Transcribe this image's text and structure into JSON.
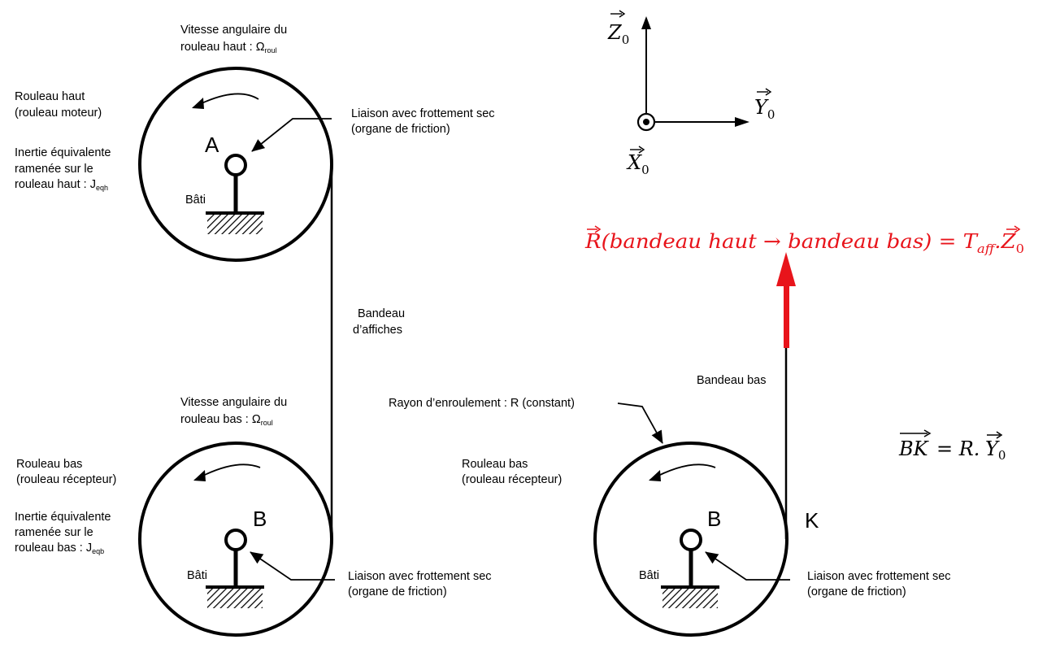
{
  "colors": {
    "stroke": "#000000",
    "accent": "#e8141b"
  },
  "top_roller": {
    "speed_label_1": "Vitesse angulaire du",
    "speed_label_2": "rouleau haut : Ω",
    "speed_sub": "roul",
    "name_1": "Rouleau haut",
    "name_2": "(rouleau moteur)",
    "inertia_1": "Inertie équivalente",
    "inertia_2": "ramenée sur le",
    "inertia_3": "rouleau haut : J",
    "inertia_sub": "eqh",
    "center_label": "A",
    "frame_label": "Bâti",
    "friction_1": "Liaison avec frottement sec",
    "friction_2": "(organe de friction)"
  },
  "band": {
    "label_1": "Bandeau",
    "label_2": "d’affiches"
  },
  "bottom_roller": {
    "speed_label_1": "Vitesse angulaire du",
    "speed_label_2": "rouleau bas : Ω",
    "speed_sub": "roul",
    "name_1": "Rouleau bas",
    "name_2": "(rouleau récepteur)",
    "inertia_1": "Inertie équivalente",
    "inertia_2": "ramenée sur le",
    "inertia_3": "rouleau bas : J",
    "inertia_sub": "eqb",
    "center_label": "B",
    "frame_label": "Bâti",
    "friction_1": "Liaison avec frottement sec",
    "friction_2": "(organe de friction)"
  },
  "detail": {
    "radius_label": "Rayon d’enroulement : R (constant)",
    "name_1": "Rouleau bas",
    "name_2": "(rouleau récepteur)",
    "center_label": "B",
    "point_label": "K",
    "frame_label": "Bâti",
    "band_label": "Bandeau bas",
    "friction_1": "Liaison avec frottement sec",
    "friction_2": "(organe de friction)",
    "bk_vector": "BK",
    "bk_rhs": "= R.",
    "bk_axis": "Y",
    "bk_axis_sub": "0"
  },
  "axes": {
    "z_label": "Z",
    "z_sub": "0",
    "y_label": "Y",
    "y_sub": "0",
    "x_label": "X",
    "x_sub": "0"
  },
  "force": {
    "vec": "R",
    "arg": "(bandeau haut → bandeau bas) = T",
    "sub": "aff",
    "dot": ".",
    "axis": "Z",
    "axis_sub": "0"
  }
}
